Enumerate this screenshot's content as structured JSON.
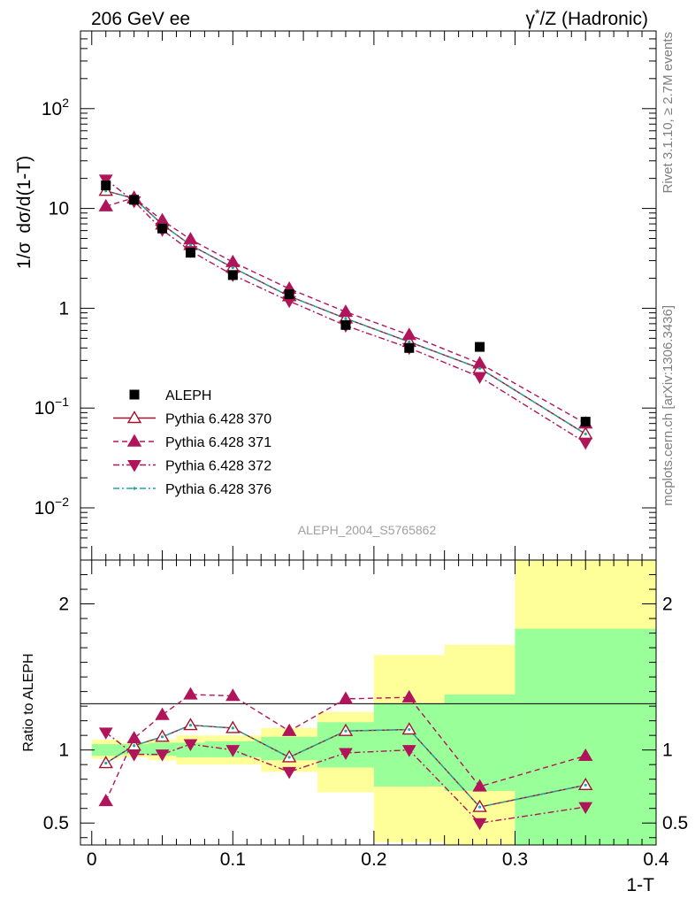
{
  "header": {
    "left": "206 GeV ee",
    "right_prefix": "γ",
    "right_sup": "*",
    "right_suffix": "/Z (Hadronic)"
  },
  "side_text": {
    "top": "Rivet 3.1.10, ≥ 2.7M events",
    "bottom": "mcplots.cern.ch [arXiv:1306.3436]"
  },
  "analysis_id": "ALEPH_2004_S5765862",
  "chart_data": [
    {
      "type": "scatter",
      "panel": "main",
      "ylabel_parts": [
        "1/σ",
        "dσ/d(1-T)"
      ],
      "yscale": "log",
      "ylim": [
        0.003,
        600
      ],
      "xlim": [
        -0.008,
        0.4
      ],
      "ytick_labels": [
        {
          "value": 0.01,
          "base": "10",
          "exp": "−2"
        },
        {
          "value": 0.1,
          "base": "10",
          "exp": "−1"
        },
        {
          "value": 1,
          "base": "1",
          "exp": ""
        },
        {
          "value": 10,
          "base": "10",
          "exp": ""
        },
        {
          "value": 100,
          "base": "10",
          "exp": "2"
        }
      ],
      "x": [
        0.01,
        0.03,
        0.05,
        0.07,
        0.1,
        0.14,
        0.18,
        0.225,
        0.275,
        0.35
      ],
      "data": {
        "name": "ALEPH",
        "values": [
          17,
          12.2,
          6.3,
          3.6,
          2.15,
          1.38,
          0.68,
          0.4,
          0.41,
          0.073
        ]
      },
      "series": [
        {
          "name": "Pythia 6.428 370",
          "color": "#a0142d",
          "marker": "open-triangle-up",
          "line": "solid",
          "values": [
            15,
            12.6,
            6.9,
            4.3,
            2.55,
            1.32,
            0.79,
            0.46,
            0.25,
            0.055
          ]
        },
        {
          "name": "Pythia 6.428 371",
          "color": "#b0155a",
          "marker": "filled-triangle-up",
          "line": "dashed",
          "values": [
            10.5,
            12.8,
            7.6,
            4.9,
            2.9,
            1.57,
            0.92,
            0.54,
            0.28,
            0.07
          ]
        },
        {
          "name": "Pythia 6.428 372",
          "color": "#b0155a",
          "marker": "filled-triangle-down",
          "line": "dashdot",
          "values": [
            19.5,
            11.8,
            6.1,
            3.75,
            2.15,
            1.18,
            0.67,
            0.4,
            0.205,
            0.045
          ]
        },
        {
          "name": "Pythia 6.428 376",
          "color": "#1fa9a2",
          "marker": "dot",
          "line": "dashdot",
          "values": [
            15,
            12.6,
            6.9,
            4.3,
            2.55,
            1.32,
            0.79,
            0.46,
            0.25,
            0.055
          ]
        }
      ]
    },
    {
      "type": "line",
      "panel": "ratio",
      "ylabel": "Ratio to ALEPH",
      "ylim": [
        0.35,
        2.3
      ],
      "ytick_labels": [
        "0.5",
        "1",
        "2"
      ],
      "ytick_values": [
        0.5,
        1,
        2
      ],
      "xlim": [
        -0.008,
        0.4
      ],
      "xlabel": "1-T",
      "xtick_labels": [
        "0",
        "0.1",
        "0.2",
        "0.3",
        "0.4"
      ],
      "xtick_values": [
        0,
        0.1,
        0.2,
        0.3,
        0.4
      ],
      "bins": [
        0,
        0.02,
        0.04,
        0.06,
        0.08,
        0.12,
        0.16,
        0.2,
        0.25,
        0.3,
        0.4
      ],
      "band_yellow": [
        [
          0.94,
          1.07
        ],
        [
          0.95,
          1.05
        ],
        [
          0.93,
          1.07
        ],
        [
          0.9,
          1.1
        ],
        [
          0.9,
          1.1
        ],
        [
          0.85,
          1.15
        ],
        [
          0.71,
          1.26
        ],
        [
          0.37,
          1.65
        ],
        [
          0.35,
          1.72
        ],
        [
          0.35,
          2.3
        ]
      ],
      "band_green": [
        [
          0.96,
          1.04
        ],
        [
          0.97,
          1.04
        ],
        [
          0.96,
          1.05
        ],
        [
          0.95,
          1.05
        ],
        [
          0.95,
          1.06
        ],
        [
          0.93,
          1.09
        ],
        [
          0.88,
          1.19
        ],
        [
          0.75,
          1.32
        ],
        [
          0.72,
          1.38
        ],
        [
          0.35,
          1.83
        ]
      ],
      "reference": 1,
      "x": [
        0.01,
        0.03,
        0.05,
        0.07,
        0.1,
        0.14,
        0.18,
        0.225,
        0.275,
        0.35
      ],
      "series": [
        {
          "name": "Pythia 6.428 370",
          "values": [
            0.91,
            1.03,
            1.09,
            1.17,
            1.15,
            0.95,
            1.13,
            1.14,
            0.61,
            0.76
          ]
        },
        {
          "name": "Pythia 6.428 371",
          "values": [
            0.65,
            1.08,
            1.24,
            1.38,
            1.37,
            1.13,
            1.35,
            1.36,
            0.75,
            0.96
          ]
        },
        {
          "name": "Pythia 6.428 372",
          "values": [
            1.12,
            0.97,
            0.97,
            1.04,
            1.0,
            0.85,
            0.98,
            1.0,
            0.5,
            0.61
          ]
        },
        {
          "name": "Pythia 6.428 376",
          "values": [
            0.91,
            1.03,
            1.09,
            1.17,
            1.15,
            0.95,
            1.13,
            1.14,
            0.61,
            0.76
          ]
        }
      ]
    }
  ]
}
